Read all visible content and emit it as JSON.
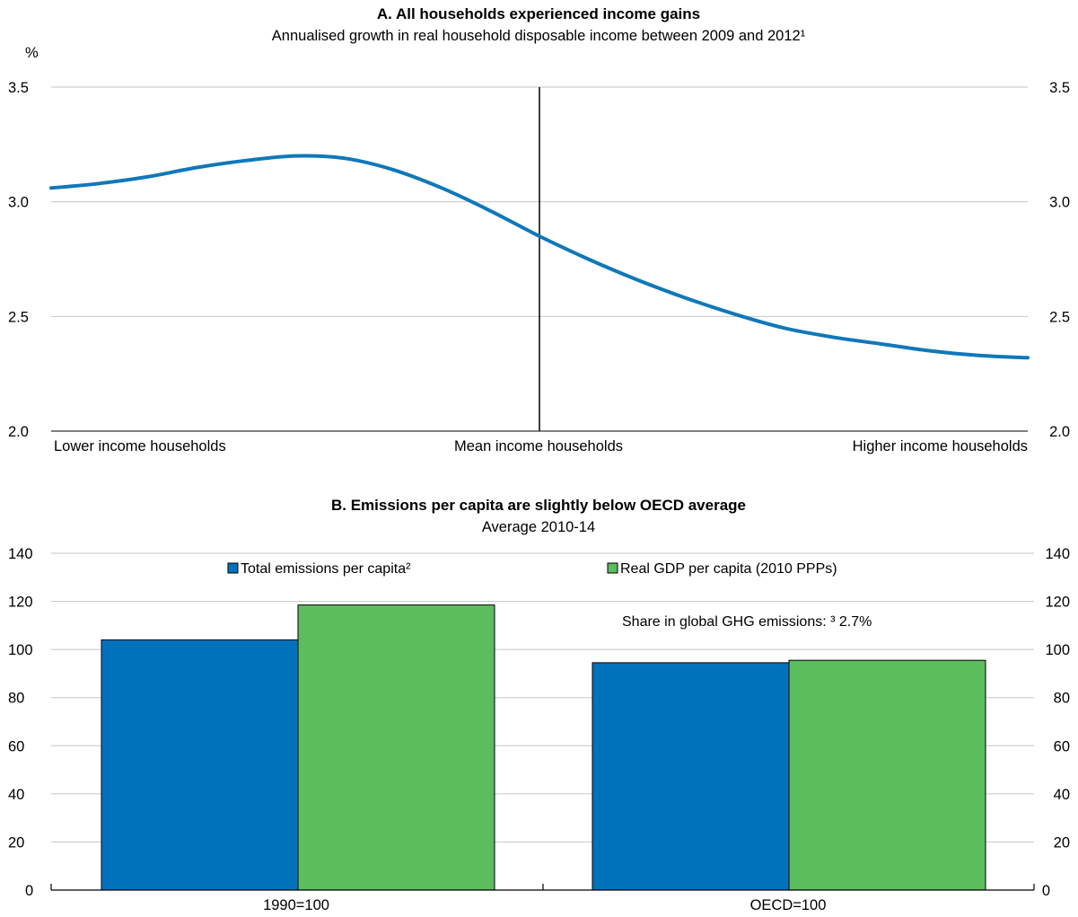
{
  "chart_data": [
    {
      "type": "line",
      "panel": "A",
      "title": "A. All households experienced income gains",
      "subtitle": "Annualised growth in real household disposable income between 2009 and 2012¹",
      "ylabel": "%",
      "ylim": [
        2.0,
        3.5
      ],
      "yticks": [
        "2.0",
        "2.5",
        "3.0",
        "3.5"
      ],
      "grid": true,
      "categories": [
        "Lower income households",
        "Mean income households",
        "Higher income households"
      ],
      "series": [
        {
          "color": "#0f78b9",
          "x": [
            0,
            0.05,
            0.1,
            0.15,
            0.2,
            0.25,
            0.3,
            0.35,
            0.4,
            0.45,
            0.5,
            0.55,
            0.6,
            0.65,
            0.7,
            0.75,
            0.8,
            0.85,
            0.9,
            0.95,
            1.0
          ],
          "values": [
            3.06,
            3.08,
            3.11,
            3.15,
            3.18,
            3.2,
            3.19,
            3.14,
            3.06,
            2.96,
            2.85,
            2.75,
            2.66,
            2.58,
            2.51,
            2.45,
            2.41,
            2.38,
            2.35,
            2.33,
            2.32
          ]
        }
      ],
      "mean_line_x": 0.5
    },
    {
      "type": "bar",
      "panel": "B",
      "title": "B. Emissions per capita are slightly below OECD average",
      "subtitle": "Average 2010-14",
      "ylim": [
        0,
        140
      ],
      "yticks": [
        "0",
        "20",
        "40",
        "60",
        "80",
        "100",
        "120",
        "140"
      ],
      "grid": true,
      "legend": "top",
      "categories": [
        "1990=100",
        "OECD=100"
      ],
      "series": [
        {
          "name": "Total emissions per capita²",
          "color": "#0072bc",
          "values": [
            104,
            94.5
          ]
        },
        {
          "name": "Real GDP per capita (2010 PPPs)",
          "color": "#5cbd5f",
          "values": [
            118.5,
            95.5
          ]
        }
      ],
      "annotation": "Share in global GHG emissions: ³ 2.7%"
    }
  ]
}
